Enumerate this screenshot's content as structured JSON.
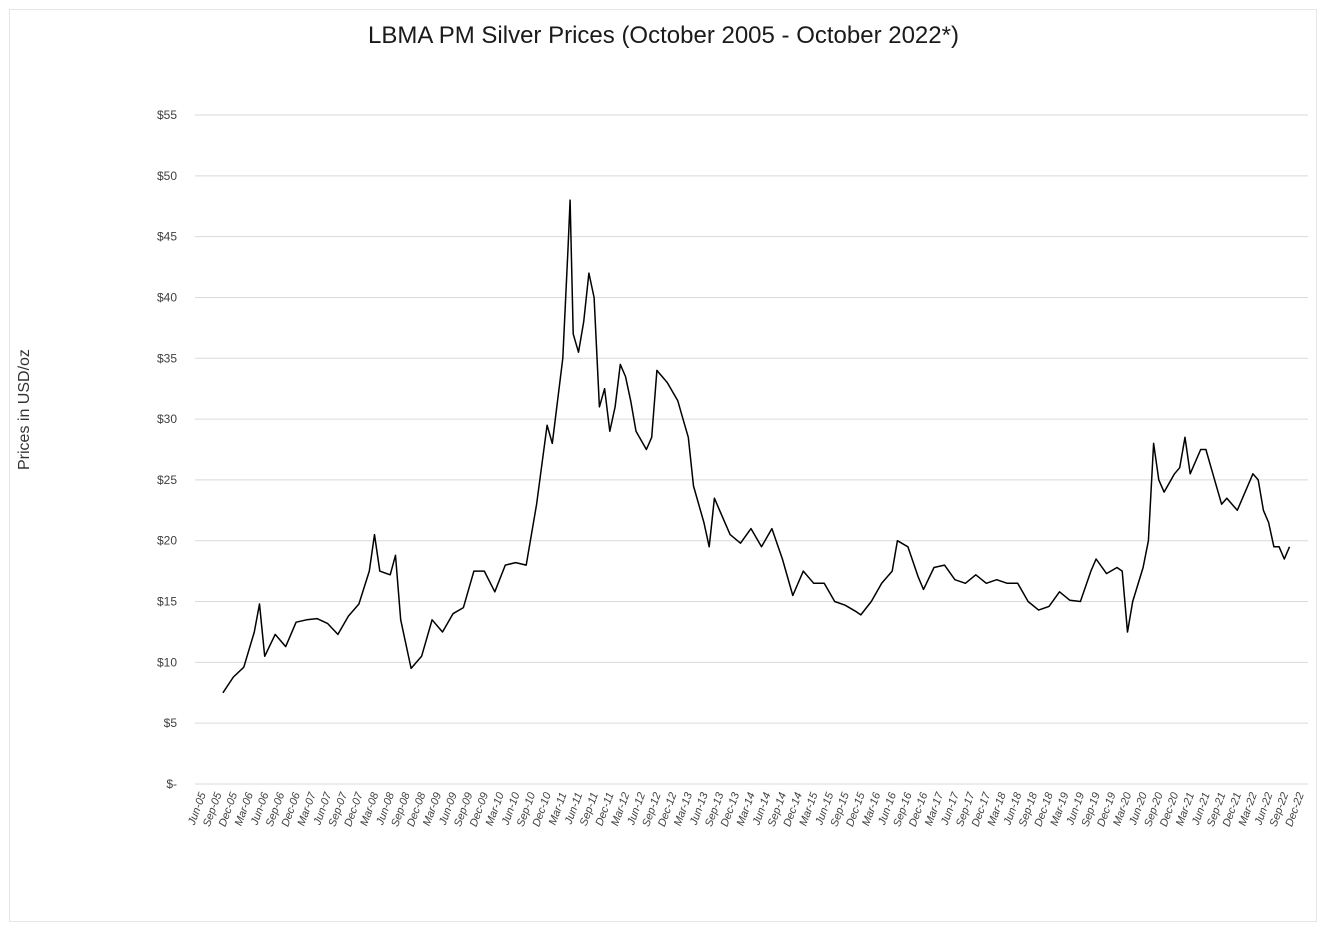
{
  "chart_data": {
    "type": "line",
    "title": "LBMA PM Silver Prices (October 2005 - October 2022*)",
    "xlabel": "",
    "ylabel": "Prices in USD/oz",
    "ylim": [
      0,
      55
    ],
    "grid": "horizontal",
    "legend": "none",
    "y_ticks": [
      0,
      5,
      10,
      15,
      20,
      25,
      30,
      35,
      40,
      45,
      50,
      55
    ],
    "y_tick_labels": [
      "$-",
      "$5",
      "$10",
      "$15",
      "$20",
      "$25",
      "$30",
      "$35",
      "$40",
      "$45",
      "$50",
      "$55"
    ],
    "x_tick_labels": [
      "Jun-05",
      "Sep-05",
      "Dec-05",
      "Mar-06",
      "Jun-06",
      "Sep-06",
      "Dec-06",
      "Mar-07",
      "Jun-07",
      "Sep-07",
      "Dec-07",
      "Mar-08",
      "Jun-08",
      "Sep-08",
      "Dec-08",
      "Mar-09",
      "Jun-09",
      "Sep-09",
      "Dec-09",
      "Mar-10",
      "Jun-10",
      "Sep-10",
      "Dec-10",
      "Mar-11",
      "Jun-11",
      "Sep-11",
      "Dec-11",
      "Mar-12",
      "Jun-12",
      "Sep-12",
      "Dec-12",
      "Mar-13",
      "Jun-13",
      "Sep-13",
      "Dec-13",
      "Mar-14",
      "Jun-14",
      "Sep-14",
      "Dec-14",
      "Mar-15",
      "Jun-15",
      "Sep-15",
      "Dec-15",
      "Mar-16",
      "Jun-16",
      "Sep-16",
      "Dec-16",
      "Mar-17",
      "Jun-17",
      "Sep-17",
      "Dec-17",
      "Mar-18",
      "Jun-18",
      "Sep-18",
      "Dec-18",
      "Mar-19",
      "Jun-19",
      "Sep-19",
      "Dec-19",
      "Mar-20",
      "Jun-20",
      "Sep-20",
      "Dec-20",
      "Mar-21",
      "Jun-21",
      "Sep-21",
      "Dec-21",
      "Mar-22",
      "Jun-22",
      "Sep-22",
      "Dec-22"
    ],
    "series": [
      {
        "color": "#000000",
        "points": [
          [
            "2005-10",
            7.5
          ],
          [
            "2005-12",
            8.8
          ],
          [
            "2006-02",
            9.6
          ],
          [
            "2006-04",
            12.5
          ],
          [
            "2006-05",
            14.8
          ],
          [
            "2006-06",
            10.5
          ],
          [
            "2006-08",
            12.3
          ],
          [
            "2006-10",
            11.3
          ],
          [
            "2006-12",
            13.3
          ],
          [
            "2007-02",
            13.5
          ],
          [
            "2007-04",
            13.6
          ],
          [
            "2007-06",
            13.2
          ],
          [
            "2007-08",
            12.3
          ],
          [
            "2007-10",
            13.8
          ],
          [
            "2007-12",
            14.8
          ],
          [
            "2008-02",
            17.5
          ],
          [
            "2008-03",
            20.5
          ],
          [
            "2008-04",
            17.5
          ],
          [
            "2008-06",
            17.2
          ],
          [
            "2008-07",
            18.8
          ],
          [
            "2008-08",
            13.5
          ],
          [
            "2008-10",
            9.5
          ],
          [
            "2008-12",
            10.5
          ],
          [
            "2009-02",
            13.5
          ],
          [
            "2009-04",
            12.5
          ],
          [
            "2009-06",
            14.0
          ],
          [
            "2009-08",
            14.5
          ],
          [
            "2009-10",
            17.5
          ],
          [
            "2009-12",
            17.5
          ],
          [
            "2010-02",
            15.8
          ],
          [
            "2010-04",
            18.0
          ],
          [
            "2010-06",
            18.2
          ],
          [
            "2010-08",
            18.0
          ],
          [
            "2010-10",
            23.0
          ],
          [
            "2010-12",
            29.5
          ],
          [
            "2011-01",
            28.0
          ],
          [
            "2011-03",
            35.0
          ],
          [
            "2011-04",
            44.0
          ],
          [
            "2011-04",
            48.0
          ],
          [
            "2011-05",
            37.0
          ],
          [
            "2011-06",
            35.5
          ],
          [
            "2011-07",
            38.0
          ],
          [
            "2011-08",
            42.0
          ],
          [
            "2011-09",
            40.0
          ],
          [
            "2011-10",
            31.0
          ],
          [
            "2011-11",
            32.5
          ],
          [
            "2011-12",
            29.0
          ],
          [
            "2012-01",
            31.0
          ],
          [
            "2012-02",
            34.5
          ],
          [
            "2012-03",
            33.5
          ],
          [
            "2012-04",
            31.5
          ],
          [
            "2012-05",
            29.0
          ],
          [
            "2012-07",
            27.5
          ],
          [
            "2012-08",
            28.5
          ],
          [
            "2012-09",
            34.0
          ],
          [
            "2012-10",
            33.5
          ],
          [
            "2012-11",
            33.0
          ],
          [
            "2013-01",
            31.5
          ],
          [
            "2013-02",
            30.0
          ],
          [
            "2013-03",
            28.5
          ],
          [
            "2013-04",
            24.5
          ],
          [
            "2013-06",
            21.5
          ],
          [
            "2013-07",
            19.5
          ],
          [
            "2013-08",
            23.5
          ],
          [
            "2013-09",
            22.5
          ],
          [
            "2013-11",
            20.5
          ],
          [
            "2014-01",
            19.8
          ],
          [
            "2014-03",
            21.0
          ],
          [
            "2014-05",
            19.5
          ],
          [
            "2014-07",
            21.0
          ],
          [
            "2014-09",
            18.5
          ],
          [
            "2014-11",
            15.5
          ],
          [
            "2015-01",
            17.5
          ],
          [
            "2015-03",
            16.5
          ],
          [
            "2015-05",
            16.5
          ],
          [
            "2015-07",
            15.0
          ],
          [
            "2015-09",
            14.7
          ],
          [
            "2015-11",
            14.2
          ],
          [
            "2015-12",
            13.9
          ],
          [
            "2016-02",
            15.0
          ],
          [
            "2016-04",
            16.5
          ],
          [
            "2016-06",
            17.5
          ],
          [
            "2016-07",
            20.0
          ],
          [
            "2016-09",
            19.5
          ],
          [
            "2016-11",
            17.0
          ],
          [
            "2016-12",
            16.0
          ],
          [
            "2017-02",
            17.8
          ],
          [
            "2017-04",
            18.0
          ],
          [
            "2017-06",
            16.8
          ],
          [
            "2017-08",
            16.5
          ],
          [
            "2017-10",
            17.2
          ],
          [
            "2017-12",
            16.5
          ],
          [
            "2018-02",
            16.8
          ],
          [
            "2018-04",
            16.5
          ],
          [
            "2018-06",
            16.5
          ],
          [
            "2018-08",
            15.0
          ],
          [
            "2018-10",
            14.3
          ],
          [
            "2018-12",
            14.6
          ],
          [
            "2019-02",
            15.8
          ],
          [
            "2019-04",
            15.1
          ],
          [
            "2019-06",
            15.0
          ],
          [
            "2019-08",
            17.5
          ],
          [
            "2019-09",
            18.5
          ],
          [
            "2019-11",
            17.3
          ],
          [
            "2020-01",
            17.8
          ],
          [
            "2020-02",
            17.5
          ],
          [
            "2020-03",
            12.5
          ],
          [
            "2020-04",
            15.0
          ],
          [
            "2020-06",
            17.8
          ],
          [
            "2020-07",
            20.0
          ],
          [
            "2020-08",
            28.0
          ],
          [
            "2020-09",
            25.0
          ],
          [
            "2020-10",
            24.0
          ],
          [
            "2020-12",
            25.5
          ],
          [
            "2021-01",
            26.0
          ],
          [
            "2021-02",
            28.5
          ],
          [
            "2021-03",
            25.5
          ],
          [
            "2021-05",
            27.5
          ],
          [
            "2021-06",
            27.5
          ],
          [
            "2021-07",
            26.0
          ],
          [
            "2021-09",
            23.0
          ],
          [
            "2021-10",
            23.5
          ],
          [
            "2021-12",
            22.5
          ],
          [
            "2022-01",
            23.5
          ],
          [
            "2022-03",
            25.5
          ],
          [
            "2022-04",
            25.0
          ],
          [
            "2022-05",
            22.5
          ],
          [
            "2022-06",
            21.5
          ],
          [
            "2022-07",
            19.5
          ],
          [
            "2022-08",
            19.5
          ],
          [
            "2022-09",
            18.5
          ],
          [
            "2022-10",
            19.5
          ]
        ]
      }
    ]
  }
}
